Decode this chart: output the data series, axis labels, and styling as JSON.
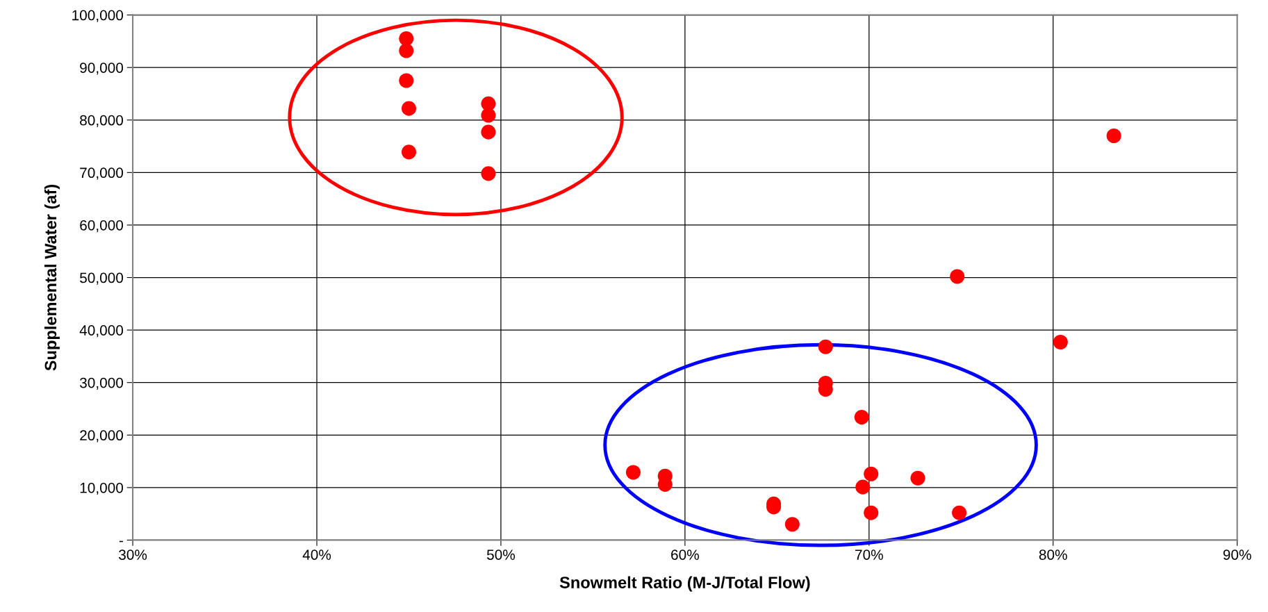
{
  "chart_data": {
    "type": "scatter",
    "xlabel": "Snowmelt Ratio (M-J/Total Flow)",
    "ylabel": "Supplemental Water (af)",
    "x": [
      44.86,
      44.86,
      44.86,
      45.0,
      45.0,
      49.32,
      49.32,
      49.32,
      49.32,
      67.64,
      67.64,
      67.64,
      69.6,
      57.19,
      58.92,
      58.92,
      64.82,
      64.82,
      65.83,
      69.66,
      70.11,
      70.11,
      72.65,
      74.9,
      83.3,
      74.79,
      80.4
    ],
    "series": [
      {
        "color": "#ff0000",
        "values": [
          95500,
          93200,
          87500,
          82200,
          73900,
          83100,
          80900,
          77700,
          69800,
          36800,
          29900,
          28700,
          23400,
          12900,
          12200,
          10600,
          6900,
          6300,
          3000,
          10100,
          12600,
          5200,
          11800,
          5200,
          77000,
          50200,
          37700
        ]
      }
    ],
    "marker": "circle",
    "xlim": [
      30,
      90
    ],
    "xticks": [
      {
        "value": 30,
        "label": "30%"
      },
      {
        "value": 40,
        "label": "40%"
      },
      {
        "value": 50,
        "label": "50%"
      },
      {
        "value": 60,
        "label": "60%"
      },
      {
        "value": 70,
        "label": "70%"
      },
      {
        "value": 80,
        "label": "80%"
      },
      {
        "value": 90,
        "label": "90%"
      }
    ],
    "ylim": [
      0,
      100000
    ],
    "yticks": [
      {
        "value": 0,
        "label": "-"
      },
      {
        "value": 10000,
        "label": "10,000"
      },
      {
        "value": 20000,
        "label": "20,000"
      },
      {
        "value": 30000,
        "label": "30,000"
      },
      {
        "value": 40000,
        "label": "40,000"
      },
      {
        "value": 50000,
        "label": "50,000"
      },
      {
        "value": 60000,
        "label": "60,000"
      },
      {
        "value": 70000,
        "label": "70,000"
      },
      {
        "value": 80000,
        "label": "80,000"
      },
      {
        "value": 90000,
        "label": "90,000"
      },
      {
        "value": 100000,
        "label": "100,000"
      }
    ],
    "grid": true
  }
}
